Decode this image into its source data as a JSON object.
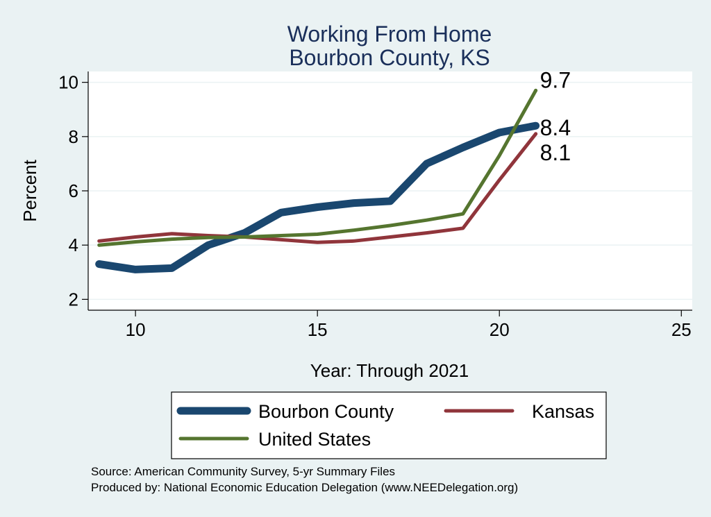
{
  "chart_data": {
    "type": "line",
    "title": [
      "Working From Home",
      "Bourbon County, KS"
    ],
    "xlabel": "Year: Through 2021",
    "ylabel": "Percent",
    "xlim": [
      8.7,
      25.3
    ],
    "ylim": [
      1.6,
      10.4
    ],
    "xticks": [
      10,
      15,
      20,
      25
    ],
    "yticks": [
      2,
      4,
      6,
      8,
      10
    ],
    "grid": true,
    "series": [
      {
        "name": "Bourbon County",
        "color": "#1a476f",
        "width": 11,
        "x": [
          9,
          10,
          11,
          12,
          13,
          14,
          15,
          16,
          17,
          18,
          19,
          20,
          21
        ],
        "values": [
          3.3,
          3.1,
          3.15,
          4.0,
          4.45,
          5.2,
          5.4,
          5.55,
          5.62,
          7.0,
          7.6,
          8.15,
          8.4
        ],
        "end_label": "8.4"
      },
      {
        "name": "Kansas",
        "color": "#90353b",
        "width": 5,
        "x": [
          9,
          10,
          11,
          12,
          13,
          14,
          15,
          16,
          17,
          18,
          19,
          20,
          21
        ],
        "values": [
          4.15,
          4.3,
          4.42,
          4.35,
          4.3,
          4.2,
          4.1,
          4.15,
          4.3,
          4.45,
          4.62,
          6.4,
          8.1
        ],
        "end_label": "8.1"
      },
      {
        "name": "United States",
        "color": "#55752f",
        "width": 5,
        "x": [
          9,
          10,
          11,
          12,
          13,
          14,
          15,
          16,
          17,
          18,
          19,
          20,
          21
        ],
        "values": [
          4.0,
          4.12,
          4.22,
          4.28,
          4.3,
          4.35,
          4.4,
          4.55,
          4.72,
          4.92,
          5.15,
          7.3,
          9.7
        ],
        "end_label": "9.7"
      }
    ],
    "legend": {
      "position": "bottom",
      "order": [
        "Bourbon County",
        "Kansas",
        "United States"
      ]
    },
    "source_lines": [
      "Source: American Community Survey, 5-yr Summary Files",
      "Produced by: National Economic Education Delegation (www.NEEDelegation.org)"
    ]
  }
}
